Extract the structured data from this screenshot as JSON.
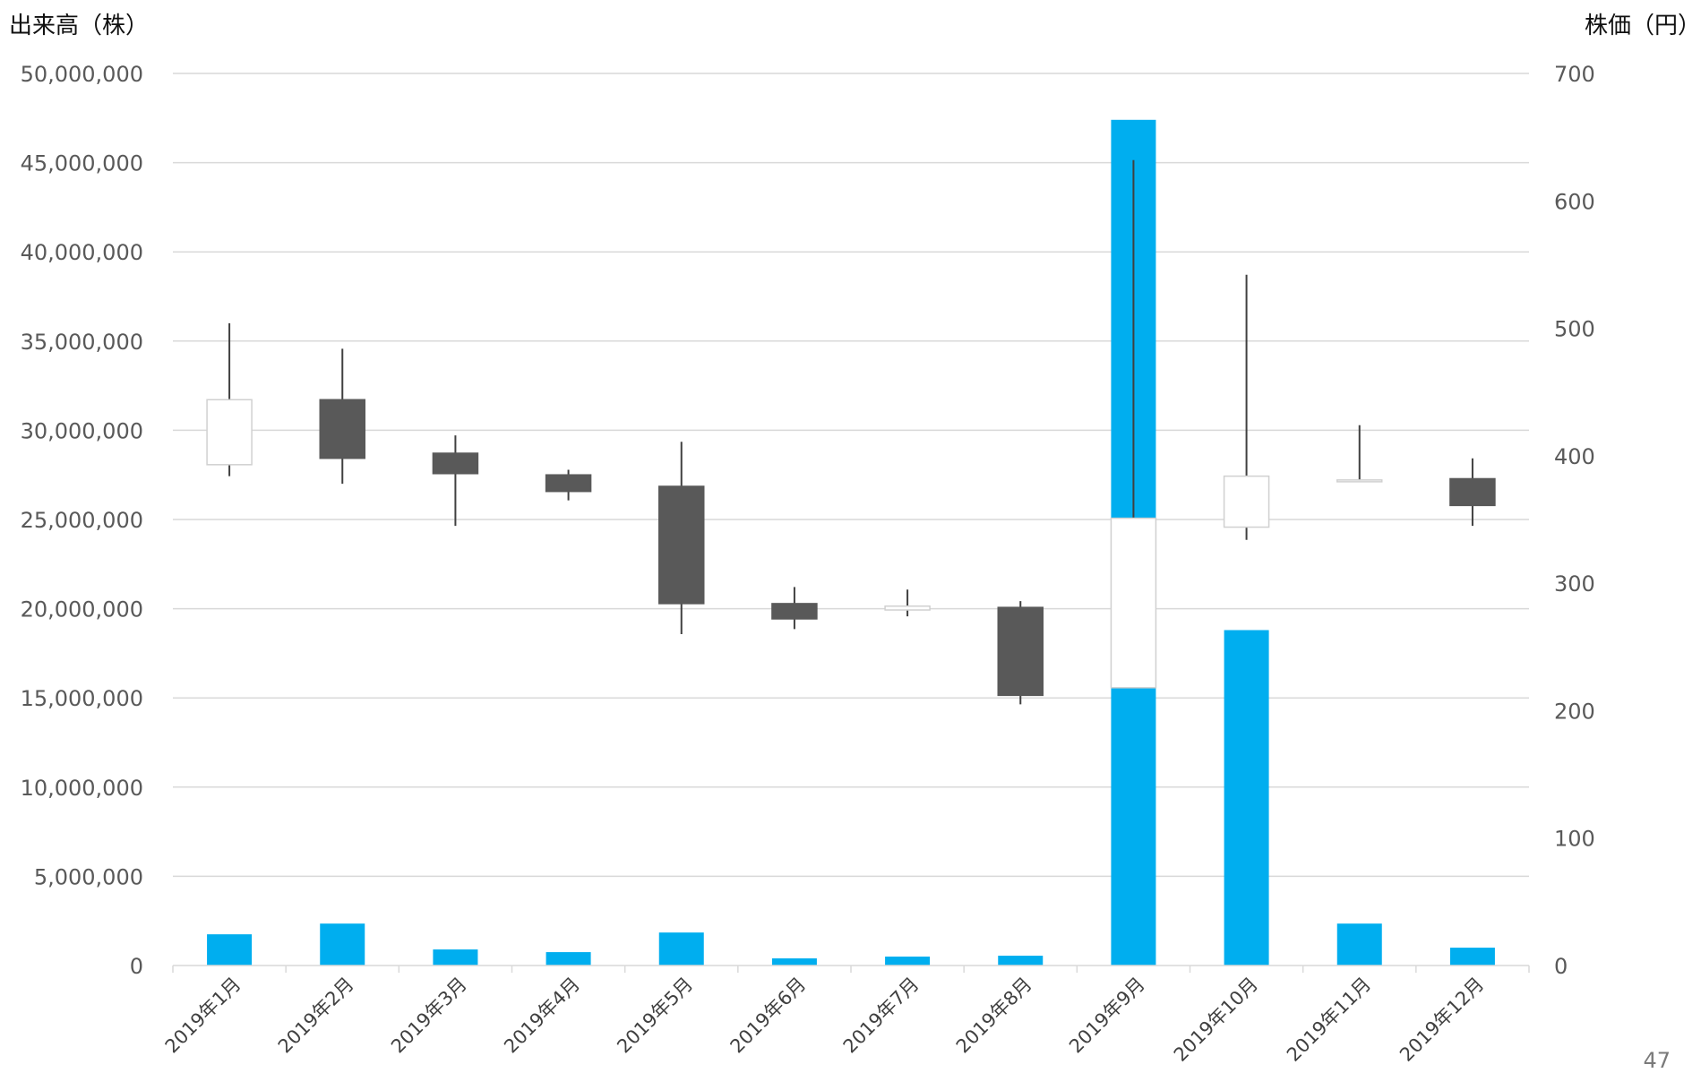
{
  "page_number": "47",
  "chart_data": {
    "type": "bar",
    "left_axis_label": "出来高（株）",
    "right_axis_label": "株価（円）",
    "categories": [
      "2019年1月",
      "2019年2月",
      "2019年3月",
      "2019年4月",
      "2019年5月",
      "2019年6月",
      "2019年7月",
      "2019年8月",
      "2019年9月",
      "2019年10月",
      "2019年11月",
      "2019年12月"
    ],
    "volume": {
      "type": "bar",
      "axis": "left",
      "ylim": [
        0,
        50000000
      ],
      "ticks": [
        0,
        5000000,
        10000000,
        15000000,
        20000000,
        25000000,
        30000000,
        35000000,
        40000000,
        45000000,
        50000000
      ],
      "tick_labels": [
        "0",
        "5,000,000",
        "10,000,000",
        "15,000,000",
        "20,000,000",
        "25,000,000",
        "30,000,000",
        "35,000,000",
        "40,000,000",
        "45,000,000",
        "50,000,000"
      ],
      "values": [
        1750000,
        2350000,
        900000,
        750000,
        1850000,
        400000,
        500000,
        550000,
        47400000,
        18800000,
        2350000,
        1000000
      ],
      "color": "#00aeef"
    },
    "price": {
      "type": "candlestick",
      "axis": "right",
      "ylim": [
        0,
        700
      ],
      "ticks": [
        0,
        100,
        200,
        300,
        400,
        500,
        600,
        700
      ],
      "tick_labels": [
        "0",
        "100",
        "200",
        "300",
        "400",
        "500",
        "600",
        "700"
      ],
      "ohlc": [
        {
          "open": 393,
          "high": 504,
          "low": 384,
          "close": 444
        },
        {
          "open": 444,
          "high": 484,
          "low": 378,
          "close": 398
        },
        {
          "open": 402,
          "high": 416,
          "low": 345,
          "close": 386
        },
        {
          "open": 385,
          "high": 389,
          "low": 365,
          "close": 372
        },
        {
          "open": 376,
          "high": 411,
          "low": 260,
          "close": 284
        },
        {
          "open": 284,
          "high": 297,
          "low": 264,
          "close": 272
        },
        {
          "open": 279,
          "high": 295,
          "low": 274,
          "close": 282
        },
        {
          "open": 281,
          "high": 286,
          "low": 205,
          "close": 212
        },
        {
          "open": 218,
          "high": 632,
          "low": 218,
          "close": 351
        },
        {
          "open": 344,
          "high": 542,
          "low": 334,
          "close": 384
        },
        {
          "open": 380,
          "high": 424,
          "low": 380,
          "close": 381
        },
        {
          "open": 382,
          "high": 398,
          "low": 345,
          "close": 361
        }
      ],
      "up_color": "#ffffff",
      "down_color": "#595959"
    },
    "grid": true
  }
}
